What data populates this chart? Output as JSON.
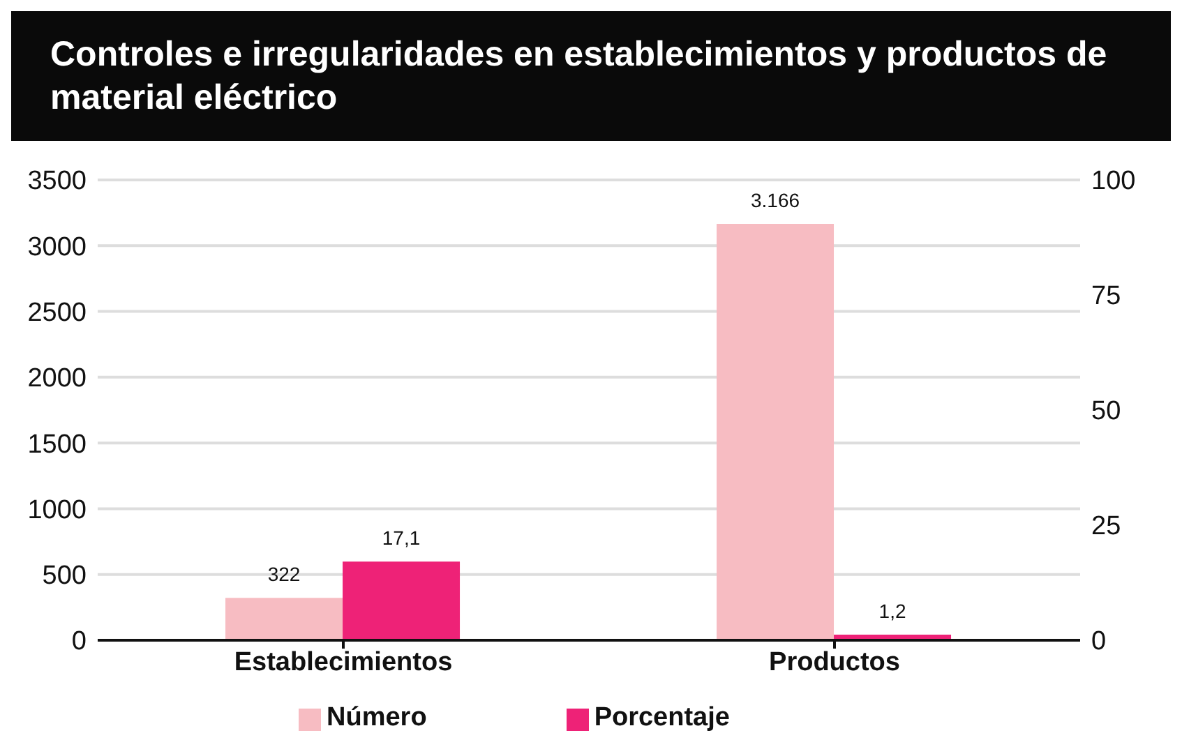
{
  "chart_data": {
    "type": "bar",
    "title": "Controles e irregularidades en establecimientos y productos de material eléctrico",
    "categories": [
      "Establecimientos",
      "Productos"
    ],
    "series": [
      {
        "name": "Número",
        "color": "#f7bcc2",
        "values": [
          322,
          3166
        ],
        "value_labels": [
          "322",
          "3.166"
        ]
      },
      {
        "name": "Porcentaje",
        "color": "#ee2277",
        "values": [
          17.1,
          1.2
        ],
        "value_labels": [
          "17,1",
          "1,2"
        ],
        "axis": "y2"
      }
    ],
    "ylim": [
      0,
      3500
    ],
    "yticks": [
      0,
      500,
      1000,
      1500,
      2000,
      2500,
      3000,
      3500
    ],
    "y2lim": [
      0,
      100
    ],
    "y2ticks": [
      0,
      25,
      50,
      75,
      100
    ],
    "grid": "y",
    "legend": "bottom"
  }
}
